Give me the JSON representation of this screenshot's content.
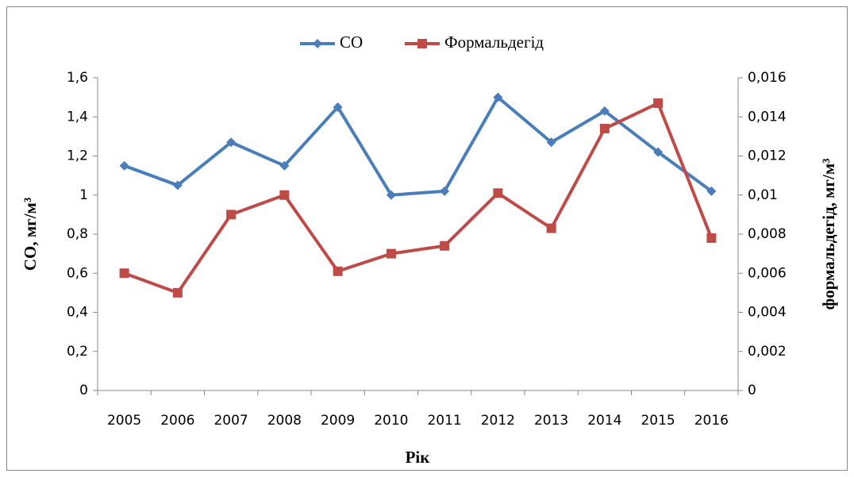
{
  "chart_data": {
    "type": "line",
    "categories": [
      "2005",
      "2006",
      "2007",
      "2008",
      "2009",
      "2010",
      "2011",
      "2012",
      "2013",
      "2014",
      "2015",
      "2016"
    ],
    "series": [
      {
        "name": "CO",
        "color": "#4a7ebb",
        "marker": "diamond",
        "values": [
          1.15,
          1.05,
          1.27,
          1.15,
          1.45,
          1.0,
          1.02,
          1.5,
          1.27,
          1.43,
          1.22,
          1.02
        ]
      },
      {
        "name": "Формальдегід",
        "color": "#be4b48",
        "marker": "square",
        "axis": "y2",
        "values": [
          0.006,
          0.005,
          0.009,
          0.01,
          0.0061,
          0.007,
          0.0074,
          0.0101,
          0.0083,
          0.0134,
          0.0147,
          0.0078
        ]
      }
    ],
    "ylim": [
      0,
      1.6
    ],
    "yticks": [
      0,
      {
        "value": 0.2,
        "label": "0,2"
      },
      {
        "value": 0.4,
        "label": "0,4"
      },
      {
        "value": 0.6,
        "label": "0,6"
      },
      {
        "value": 0.8,
        "label": "0,8"
      },
      1,
      {
        "value": 1.2,
        "label": "1,2"
      },
      {
        "value": 1.4,
        "label": "1,4"
      },
      {
        "value": 1.6,
        "label": "1,6"
      }
    ],
    "y2lim": [
      0,
      0.016
    ],
    "y2ticks": [
      0,
      {
        "value": 0.002,
        "label": "0,002"
      },
      {
        "value": 0.004,
        "label": "0,004"
      },
      {
        "value": 0.006,
        "label": "0,006"
      },
      {
        "value": 0.008,
        "label": "0,008"
      },
      {
        "value": 0.01,
        "label": "0,01"
      },
      {
        "value": 0.012,
        "label": "0,012"
      },
      {
        "value": 0.014,
        "label": "0,014"
      },
      {
        "value": 0.016,
        "label": "0,016"
      }
    ],
    "xlabel": "Рік",
    "ylabel": "CO, мг/м³",
    "y2label": "формальдегід, мг/м³",
    "grid": false,
    "legend": "top"
  }
}
